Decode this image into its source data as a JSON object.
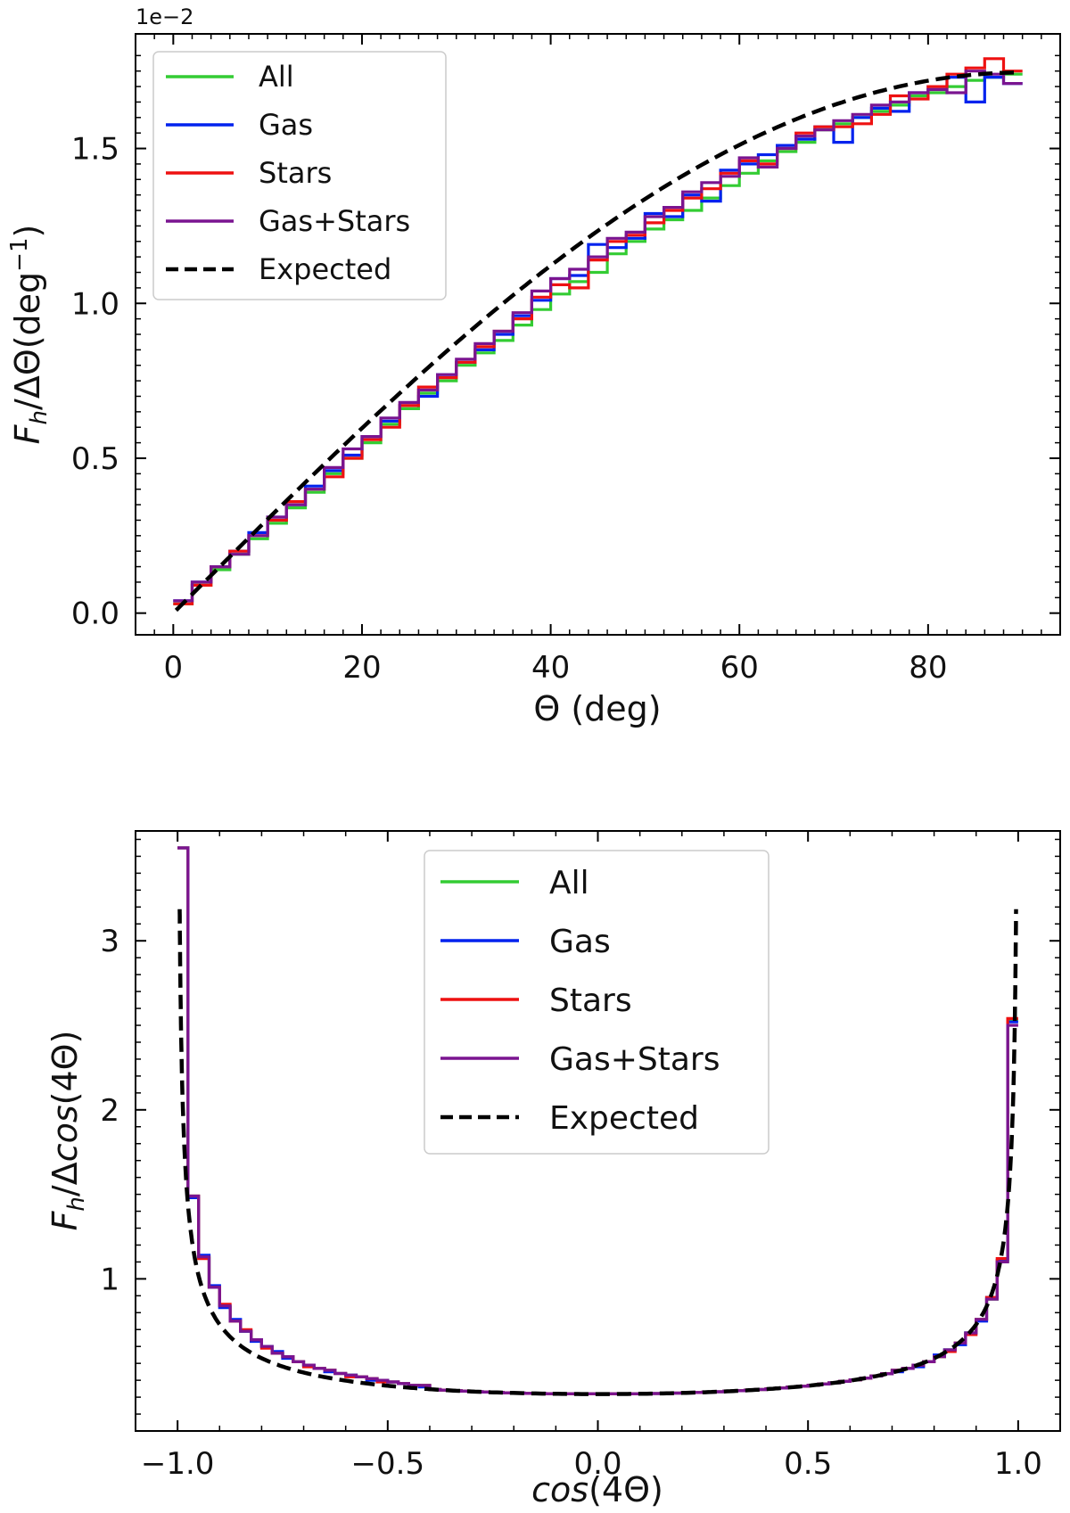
{
  "colors": {
    "All": "#33cc33",
    "Gas": "#0022ee",
    "Stars": "#ee1111",
    "Gas+Stars": "#7a1490",
    "Expected": "#000000"
  },
  "chart_data": [
    {
      "type": "line",
      "style": "step histogram",
      "title": "",
      "xlabel": "Θ (deg)",
      "ylabel_main": "F",
      "ylabel_sub": "h",
      "ylabel_rest": "/ΔΘ(deg",
      "ylabel_sup": "−1",
      "ylabel_close": ")",
      "y_multiplier": "1e−2",
      "xlim": [
        -4,
        94
      ],
      "ylim": [
        -0.07,
        1.87
      ],
      "xticks": [
        0,
        20,
        40,
        60,
        80
      ],
      "xtick_labels": [
        "0",
        "20",
        "40",
        "60",
        "80"
      ],
      "yticks": [
        0.0,
        0.5,
        1.0,
        1.5
      ],
      "ytick_labels": [
        "0.0",
        "0.5",
        "1.0",
        "1.5"
      ],
      "legend": [
        "All",
        "Gas",
        "Stars",
        "Gas+Stars",
        "Expected"
      ],
      "legend_position": "upper-left",
      "bin_edges_range": [
        0,
        90
      ],
      "bins": 45,
      "series": [
        {
          "name": "All",
          "values": [
            0.03,
            0.09,
            0.14,
            0.19,
            0.24,
            0.29,
            0.34,
            0.39,
            0.45,
            0.5,
            0.55,
            0.61,
            0.66,
            0.71,
            0.75,
            0.8,
            0.84,
            0.88,
            0.93,
            0.98,
            1.03,
            1.07,
            1.1,
            1.16,
            1.2,
            1.24,
            1.27,
            1.3,
            1.34,
            1.38,
            1.42,
            1.46,
            1.49,
            1.52,
            1.56,
            1.58,
            1.6,
            1.62,
            1.64,
            1.67,
            1.68,
            1.7,
            1.72,
            1.73,
            1.74
          ]
        },
        {
          "name": "Gas",
          "values": [
            0.04,
            0.1,
            0.15,
            0.2,
            0.26,
            0.31,
            0.35,
            0.41,
            0.46,
            0.51,
            0.57,
            0.62,
            0.67,
            0.7,
            0.77,
            0.81,
            0.85,
            0.9,
            0.96,
            1.01,
            1.08,
            1.09,
            1.19,
            1.18,
            1.21,
            1.29,
            1.28,
            1.35,
            1.33,
            1.43,
            1.45,
            1.48,
            1.51,
            1.53,
            1.57,
            1.52,
            1.6,
            1.63,
            1.62,
            1.68,
            1.7,
            1.73,
            1.65,
            1.73,
            1.71
          ]
        },
        {
          "name": "Stars",
          "values": [
            0.03,
            0.09,
            0.15,
            0.2,
            0.25,
            0.3,
            0.36,
            0.4,
            0.44,
            0.5,
            0.56,
            0.6,
            0.67,
            0.73,
            0.76,
            0.81,
            0.86,
            0.91,
            0.95,
            1.02,
            1.06,
            1.05,
            1.14,
            1.2,
            1.22,
            1.26,
            1.3,
            1.34,
            1.37,
            1.42,
            1.46,
            1.45,
            1.5,
            1.55,
            1.57,
            1.57,
            1.58,
            1.61,
            1.67,
            1.66,
            1.7,
            1.74,
            1.76,
            1.79,
            1.75
          ]
        },
        {
          "name": "Gas+Stars",
          "values": [
            0.04,
            0.1,
            0.15,
            0.19,
            0.25,
            0.31,
            0.35,
            0.4,
            0.47,
            0.53,
            0.57,
            0.63,
            0.68,
            0.72,
            0.77,
            0.82,
            0.87,
            0.91,
            0.97,
            1.04,
            1.08,
            1.11,
            1.15,
            1.21,
            1.23,
            1.28,
            1.31,
            1.36,
            1.39,
            1.41,
            1.47,
            1.44,
            1.5,
            1.54,
            1.56,
            1.59,
            1.61,
            1.64,
            1.65,
            1.68,
            1.69,
            1.68,
            1.75,
            1.74,
            1.71
          ]
        },
        {
          "name": "Expected",
          "function": "pi/180 * sin(theta)",
          "x_range": [
            0.3,
            89.5
          ]
        }
      ]
    },
    {
      "type": "line",
      "style": "step histogram",
      "title": "",
      "xlabel_italic": "cos",
      "xlabel_rest": "(4Θ)",
      "ylabel_main": "F",
      "ylabel_sub": "h",
      "ylabel_rest": "/Δ",
      "ylabel_italic": "cos",
      "ylabel_close": "(4Θ)",
      "xlim": [
        -1.1,
        1.1
      ],
      "ylim": [
        0.1,
        3.65
      ],
      "xticks": [
        -1.0,
        -0.5,
        0.0,
        0.5,
        1.0
      ],
      "xtick_labels": [
        "−1.0",
        "−0.5",
        "0.0",
        "0.5",
        "1.0"
      ],
      "yticks": [
        1,
        2,
        3
      ],
      "ytick_labels": [
        "1",
        "2",
        "3"
      ],
      "legend": [
        "All",
        "Gas",
        "Stars",
        "Gas+Stars",
        "Expected"
      ],
      "legend_position": "upper-center",
      "bin_edges_range": [
        -1.0,
        1.0
      ],
      "bins": 80,
      "series": [
        {
          "name": "All",
          "values_edges": [
            3.55,
            1.49,
            1.13,
            0.95,
            0.84,
            0.75,
            0.69,
            0.64,
            0.6,
            0.56,
            0.54,
            0.51,
            0.49,
            0.47,
            0.46,
            0.44,
            0.43,
            0.42,
            0.41,
            0.4,
            0.39,
            0.38,
            0.37,
            0.37
          ],
          "center_value": 0.32,
          "right_edges": [
            2.53,
            1.1,
            0.88,
            0.76,
            0.68,
            0.62,
            0.58,
            0.54,
            0.51,
            0.49,
            0.47,
            0.46
          ]
        },
        {
          "name": "Gas",
          "values_edges": [
            3.55,
            1.48,
            1.14,
            0.96,
            0.83,
            0.76,
            0.69,
            0.63,
            0.6,
            0.57,
            0.53,
            0.51,
            0.49,
            0.47,
            0.45,
            0.44,
            0.43,
            0.42,
            0.4,
            0.4,
            0.39,
            0.38,
            0.37,
            0.36
          ],
          "center_value": 0.32,
          "right_edges": [
            2.52,
            1.11,
            0.89,
            0.75,
            0.68,
            0.61,
            0.58,
            0.55,
            0.51,
            0.48,
            0.47,
            0.45
          ]
        },
        {
          "name": "Stars",
          "values_edges": [
            3.55,
            1.49,
            1.12,
            0.95,
            0.85,
            0.75,
            0.7,
            0.64,
            0.59,
            0.56,
            0.54,
            0.51,
            0.48,
            0.47,
            0.46,
            0.44,
            0.42,
            0.42,
            0.41,
            0.39,
            0.39,
            0.38,
            0.37,
            0.37
          ],
          "center_value": 0.32,
          "right_edges": [
            2.54,
            1.12,
            0.89,
            0.76,
            0.67,
            0.62,
            0.57,
            0.54,
            0.51,
            0.49,
            0.47,
            0.46
          ]
        },
        {
          "name": "Gas+Stars",
          "values_edges": [
            3.55,
            1.49,
            1.13,
            0.95,
            0.84,
            0.75,
            0.69,
            0.64,
            0.6,
            0.56,
            0.54,
            0.51,
            0.49,
            0.47,
            0.46,
            0.44,
            0.43,
            0.42,
            0.41,
            0.4,
            0.39,
            0.38,
            0.37,
            0.37
          ],
          "center_value": 0.32,
          "right_edges": [
            2.5,
            1.1,
            0.88,
            0.76,
            0.68,
            0.62,
            0.58,
            0.54,
            0.51,
            0.49,
            0.47,
            0.46
          ]
        },
        {
          "name": "Expected",
          "function": "1 / (pi * sqrt(1 - c^2))",
          "x_range": [
            -0.995,
            0.995
          ]
        }
      ]
    }
  ]
}
